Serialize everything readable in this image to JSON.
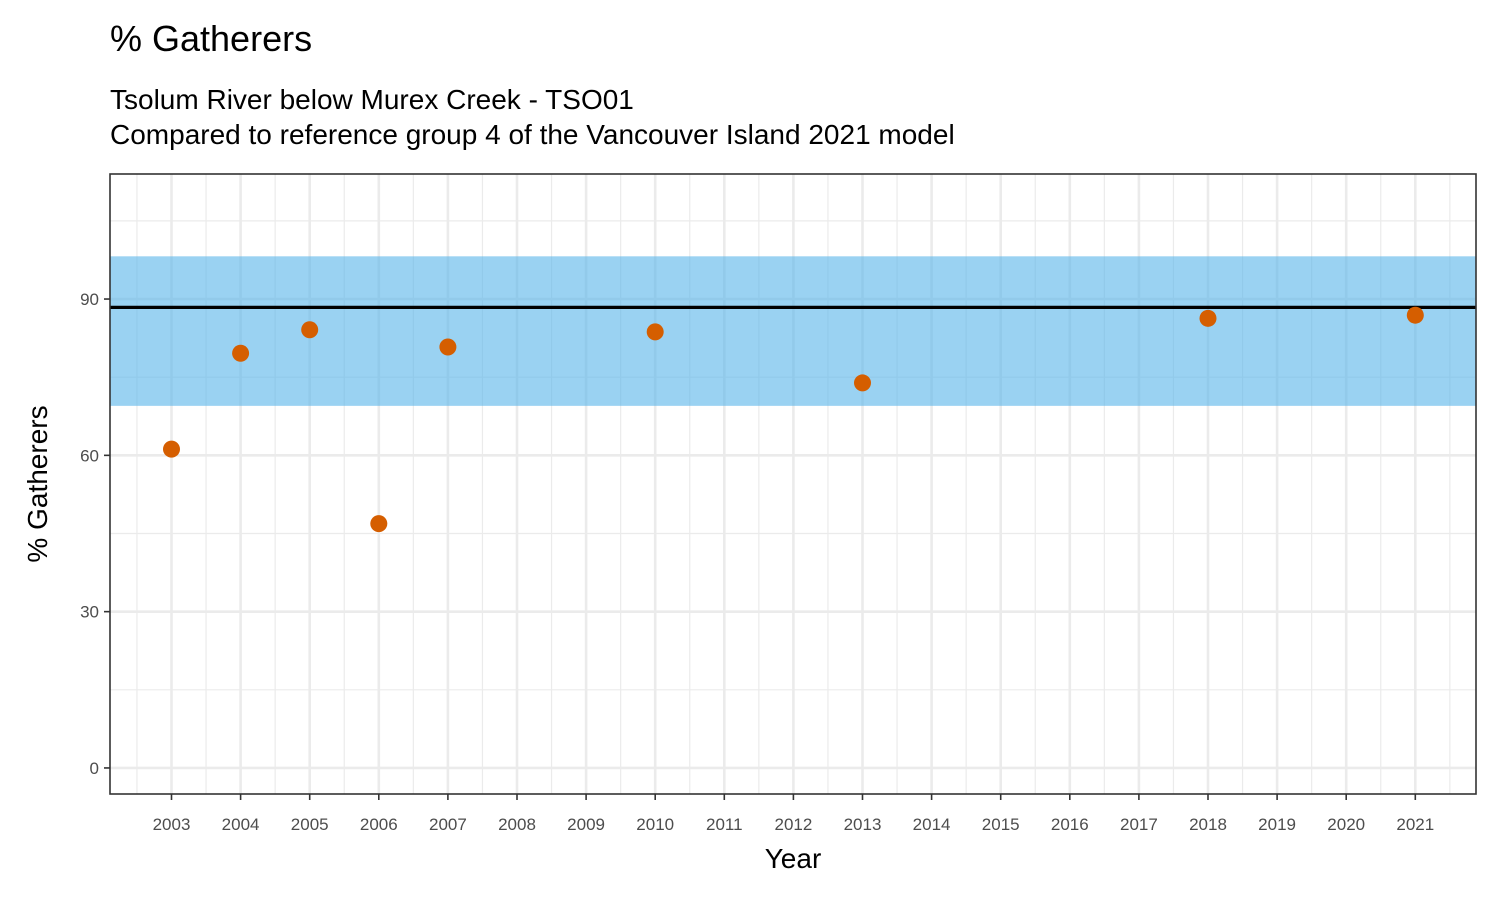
{
  "chart_data": {
    "type": "scatter",
    "title": "% Gatherers",
    "subtitle_lines": [
      "Tsolum River below Murex Creek - TSO01",
      "Compared to reference group 4 of the Vancouver Island 2021 model"
    ],
    "xlabel": "Year",
    "ylabel": "% Gatherers",
    "x_categories": [
      "2003",
      "2004",
      "2005",
      "2006",
      "2007",
      "2008",
      "2009",
      "2010",
      "2011",
      "2012",
      "2013",
      "2014",
      "2015",
      "2016",
      "2017",
      "2018",
      "2019",
      "2020",
      "2021"
    ],
    "y_ticks": [
      0,
      30,
      60,
      90
    ],
    "ylim": [
      -5,
      114
    ],
    "grid": true,
    "points": [
      {
        "x": "2003",
        "y": 61.2
      },
      {
        "x": "2004",
        "y": 79.6
      },
      {
        "x": "2005",
        "y": 84.1
      },
      {
        "x": "2006",
        "y": 46.9
      },
      {
        "x": "2007",
        "y": 80.8
      },
      {
        "x": "2010",
        "y": 83.7
      },
      {
        "x": "2013",
        "y": 73.9
      },
      {
        "x": "2018",
        "y": 86.3
      },
      {
        "x": "2021",
        "y": 86.9
      }
    ],
    "reference_band": {
      "low": 69.5,
      "high": 98.2
    },
    "reference_line": 88.4,
    "colors": {
      "point": "#d55e00",
      "band": "#56b4e9",
      "line": "#000000",
      "grid": "#ebebeb",
      "panel_border": "#333333"
    }
  }
}
